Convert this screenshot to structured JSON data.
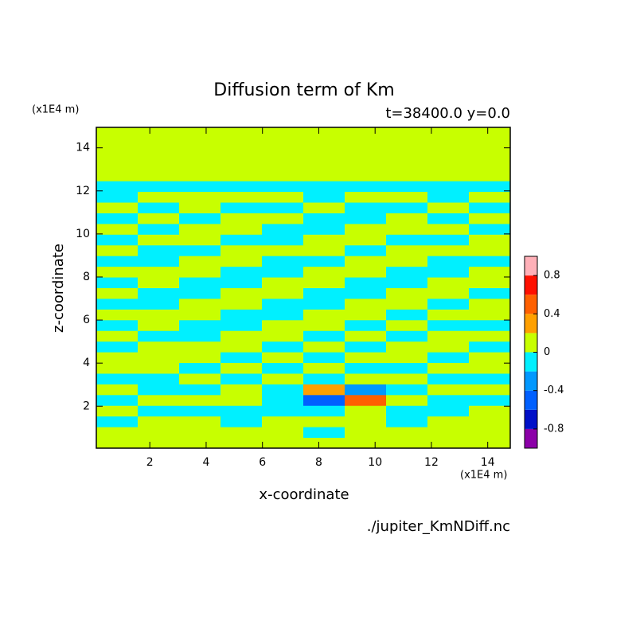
{
  "chart_data": {
    "type": "contour",
    "title": "Diffusion term of Km",
    "subtitle": "t=38400.0 y=0.0",
    "xlabel": "x-coordinate",
    "ylabel": "z-coordinate",
    "xunit": "(x1E4 m)",
    "yunit": "(x1E4 m)",
    "source": "./jupiter_KmNDiff.nc",
    "xlim": [
      0.1,
      14.8
    ],
    "ylim": [
      0.05,
      14.95
    ],
    "xticks": [
      2,
      4,
      6,
      8,
      10,
      12,
      14
    ],
    "yticks": [
      2,
      4,
      6,
      8,
      10,
      12,
      14
    ],
    "levels": [
      -1,
      -0.8,
      -0.6,
      -0.4,
      -0.2,
      0,
      0.2,
      0.4,
      0.6,
      0.8,
      1
    ],
    "colors": [
      "#8c00a8",
      "#0010c8",
      "#0060ff",
      "#0098ff",
      "#00f0ff",
      "#c8ff00",
      "#ffa000",
      "#ff6000",
      "#ff1000",
      "#ffb0b8"
    ],
    "colorbar_ticks": [
      -0.8,
      -0.4,
      0,
      0.4,
      0.8
    ],
    "z": [
      [
        0.1,
        0.1,
        0.1,
        0.1,
        0.1,
        0.1,
        0.1,
        0.1,
        0.1,
        0.1
      ],
      [
        0.1,
        0.1,
        0.1,
        0.1,
        0.1,
        -0.1,
        0.1,
        0.1,
        0.1,
        0.1
      ],
      [
        -0.1,
        0.1,
        0.1,
        -0.1,
        0.1,
        0.1,
        0.1,
        -0.1,
        0.1,
        0.1
      ],
      [
        0.1,
        -0.1,
        -0.1,
        -0.1,
        -0.1,
        -0.1,
        0.1,
        -0.1,
        -0.1,
        0.1
      ],
      [
        -0.1,
        0.1,
        0.1,
        0.1,
        -0.1,
        -0.5,
        0.5,
        0.1,
        -0.1,
        -0.1
      ],
      [
        0.1,
        -0.1,
        -0.1,
        0.1,
        -0.1,
        0.3,
        -0.3,
        -0.1,
        0.1,
        0.1
      ],
      [
        -0.1,
        -0.1,
        0.1,
        -0.1,
        0.1,
        -0.1,
        0.1,
        0.1,
        -0.1,
        -0.1
      ],
      [
        0.1,
        0.1,
        -0.1,
        0.1,
        -0.1,
        0.1,
        -0.1,
        -0.1,
        0.1,
        0.1
      ],
      [
        0.1,
        0.1,
        0.1,
        -0.1,
        0.1,
        -0.1,
        0.1,
        0.1,
        -0.1,
        0.1
      ],
      [
        -0.1,
        0.1,
        0.1,
        0.1,
        -0.1,
        0.1,
        -0.1,
        0.1,
        0.1,
        -0.1
      ],
      [
        0.1,
        -0.1,
        -0.1,
        0.1,
        0.1,
        -0.1,
        0.1,
        -0.1,
        0.1,
        0.1
      ],
      [
        -0.1,
        0.1,
        -0.1,
        -0.1,
        0.1,
        0.1,
        -0.1,
        0.1,
        -0.1,
        -0.1
      ],
      [
        0.1,
        0.1,
        0.1,
        -0.1,
        -0.1,
        0.1,
        0.1,
        -0.1,
        0.1,
        0.1
      ],
      [
        -0.1,
        -0.1,
        0.1,
        0.1,
        -0.1,
        -0.1,
        0.1,
        0.1,
        -0.1,
        0.1
      ],
      [
        0.1,
        -0.1,
        -0.1,
        0.1,
        0.1,
        -0.1,
        -0.1,
        0.1,
        0.1,
        -0.1
      ],
      [
        -0.1,
        0.1,
        -0.1,
        -0.1,
        0.1,
        0.1,
        -0.1,
        -0.1,
        0.1,
        0.1
      ],
      [
        0.1,
        0.1,
        0.1,
        -0.1,
        -0.1,
        0.1,
        0.1,
        -0.1,
        -0.1,
        0.1
      ],
      [
        -0.1,
        -0.1,
        0.1,
        0.1,
        -0.1,
        -0.1,
        0.1,
        0.1,
        -0.1,
        -0.1
      ],
      [
        0.1,
        -0.1,
        -0.1,
        0.1,
        0.1,
        0.1,
        -0.1,
        0.1,
        0.1,
        0.1
      ],
      [
        -0.1,
        0.1,
        0.1,
        -0.1,
        -0.1,
        0.1,
        0.1,
        -0.1,
        -0.1,
        0.1
      ],
      [
        0.1,
        -0.1,
        0.1,
        0.1,
        -0.1,
        -0.1,
        0.1,
        0.1,
        0.1,
        -0.1
      ],
      [
        -0.1,
        0.1,
        -0.1,
        0.1,
        0.1,
        -0.1,
        -0.1,
        0.1,
        -0.1,
        0.1
      ],
      [
        0.1,
        -0.1,
        0.1,
        -0.1,
        -0.1,
        0.1,
        -0.1,
        -0.1,
        0.1,
        -0.1
      ],
      [
        -0.1,
        0.1,
        0.1,
        0.1,
        0.1,
        -0.1,
        0.1,
        0.1,
        -0.1,
        0.1
      ],
      [
        -0.1,
        -0.1,
        -0.1,
        -0.1,
        -0.1,
        -0.1,
        -0.1,
        -0.1,
        -0.1,
        -0.1
      ],
      [
        0.1,
        0.1,
        0.1,
        0.1,
        0.1,
        0.1,
        0.1,
        0.1,
        0.1,
        0.1
      ],
      [
        0.1,
        0.1,
        0.1,
        0.1,
        0.1,
        0.1,
        0.1,
        0.1,
        0.1,
        0.1
      ],
      [
        0.1,
        0.1,
        0.1,
        0.1,
        0.1,
        0.1,
        0.1,
        0.1,
        0.1,
        0.1
      ],
      [
        0.1,
        0.1,
        0.1,
        0.1,
        0.1,
        0.1,
        0.1,
        0.1,
        0.1,
        0.1
      ],
      [
        0.1,
        0.1,
        0.1,
        0.1,
        0.1,
        0.1,
        0.1,
        0.1,
        0.1,
        0.1
      ]
    ]
  }
}
